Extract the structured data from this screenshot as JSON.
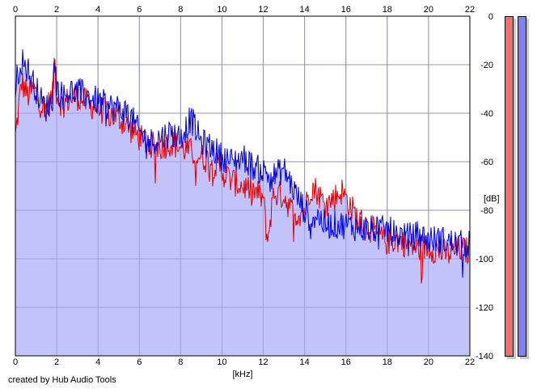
{
  "chart_data": {
    "type": "line",
    "xlabel": "[kHz]",
    "ylabel": "[dB]",
    "xlim": [
      0,
      22
    ],
    "ylim": [
      -140,
      0
    ],
    "x_ticks": [
      "0",
      "2",
      "4",
      "6",
      "8",
      "10",
      "12",
      "14",
      "16",
      "18",
      "20",
      "22"
    ],
    "y_ticks": [
      "0",
      "-20",
      "-40",
      "-60",
      "-80",
      "-100",
      "-120",
      "-140"
    ],
    "grid": true,
    "fill_color": "#c0c0fc",
    "series": [
      {
        "color": "#e00000",
        "x": [
          0,
          0.3,
          0.6,
          0.9,
          1.2,
          1.5,
          1.8,
          1.9,
          2.0,
          2.3,
          2.6,
          3.0,
          3.5,
          4.0,
          4.5,
          5.0,
          5.5,
          6.0,
          6.5,
          7.0,
          7.5,
          8.0,
          8.5,
          9.0,
          9.5,
          10.0,
          10.5,
          11.0,
          11.5,
          12.0,
          12.2,
          12.5,
          13.0,
          13.5,
          14.0,
          14.3,
          14.6,
          15.0,
          15.4,
          15.8,
          16.2,
          16.6,
          17.0,
          17.5,
          18.0,
          18.5,
          19.0,
          19.5,
          20.0,
          20.5,
          21.0,
          21.5,
          22.0
        ],
        "y": [
          -50,
          -27,
          -33,
          -30,
          -36,
          -38,
          -33,
          -16,
          -32,
          -37,
          -34,
          -33,
          -36,
          -38,
          -40,
          -42,
          -46,
          -50,
          -53,
          -54,
          -52,
          -54,
          -56,
          -58,
          -60,
          -64,
          -68,
          -70,
          -72,
          -75,
          -93,
          -73,
          -74,
          -82,
          -80,
          -70,
          -72,
          -78,
          -75,
          -72,
          -78,
          -84,
          -86,
          -90,
          -93,
          -92,
          -94,
          -96,
          -95,
          -97,
          -98,
          -96,
          -97
        ]
      },
      {
        "color": "#0000d8",
        "x": [
          0,
          0.3,
          0.6,
          0.9,
          1.2,
          1.5,
          1.8,
          1.9,
          2.0,
          2.3,
          2.6,
          3.0,
          3.5,
          4.0,
          4.5,
          5.0,
          5.5,
          6.0,
          6.5,
          7.0,
          7.5,
          8.0,
          8.5,
          9.0,
          9.5,
          10.0,
          10.5,
          11.0,
          11.5,
          12.0,
          12.5,
          13.0,
          13.5,
          14.0,
          14.3,
          14.6,
          15.0,
          15.5,
          16.0,
          16.5,
          17.0,
          17.5,
          18.0,
          18.5,
          19.0,
          19.5,
          20.0,
          20.5,
          21.0,
          21.5,
          22.0
        ],
        "y": [
          -28,
          -18,
          -22,
          -28,
          -34,
          -38,
          -34,
          -15,
          -30,
          -33,
          -31,
          -31,
          -33,
          -35,
          -37,
          -38,
          -40,
          -48,
          -52,
          -50,
          -48,
          -50,
          -42,
          -52,
          -54,
          -58,
          -60,
          -58,
          -62,
          -64,
          -66,
          -63,
          -72,
          -80,
          -84,
          -82,
          -86,
          -86,
          -86,
          -87,
          -88,
          -88,
          -88,
          -90,
          -91,
          -90,
          -92,
          -92,
          -93,
          -94,
          -94
        ]
      }
    ]
  },
  "credit": "created by Hub Audio Tools",
  "meters": {
    "left_color": "#f07070",
    "right_color": "#8080f0"
  }
}
